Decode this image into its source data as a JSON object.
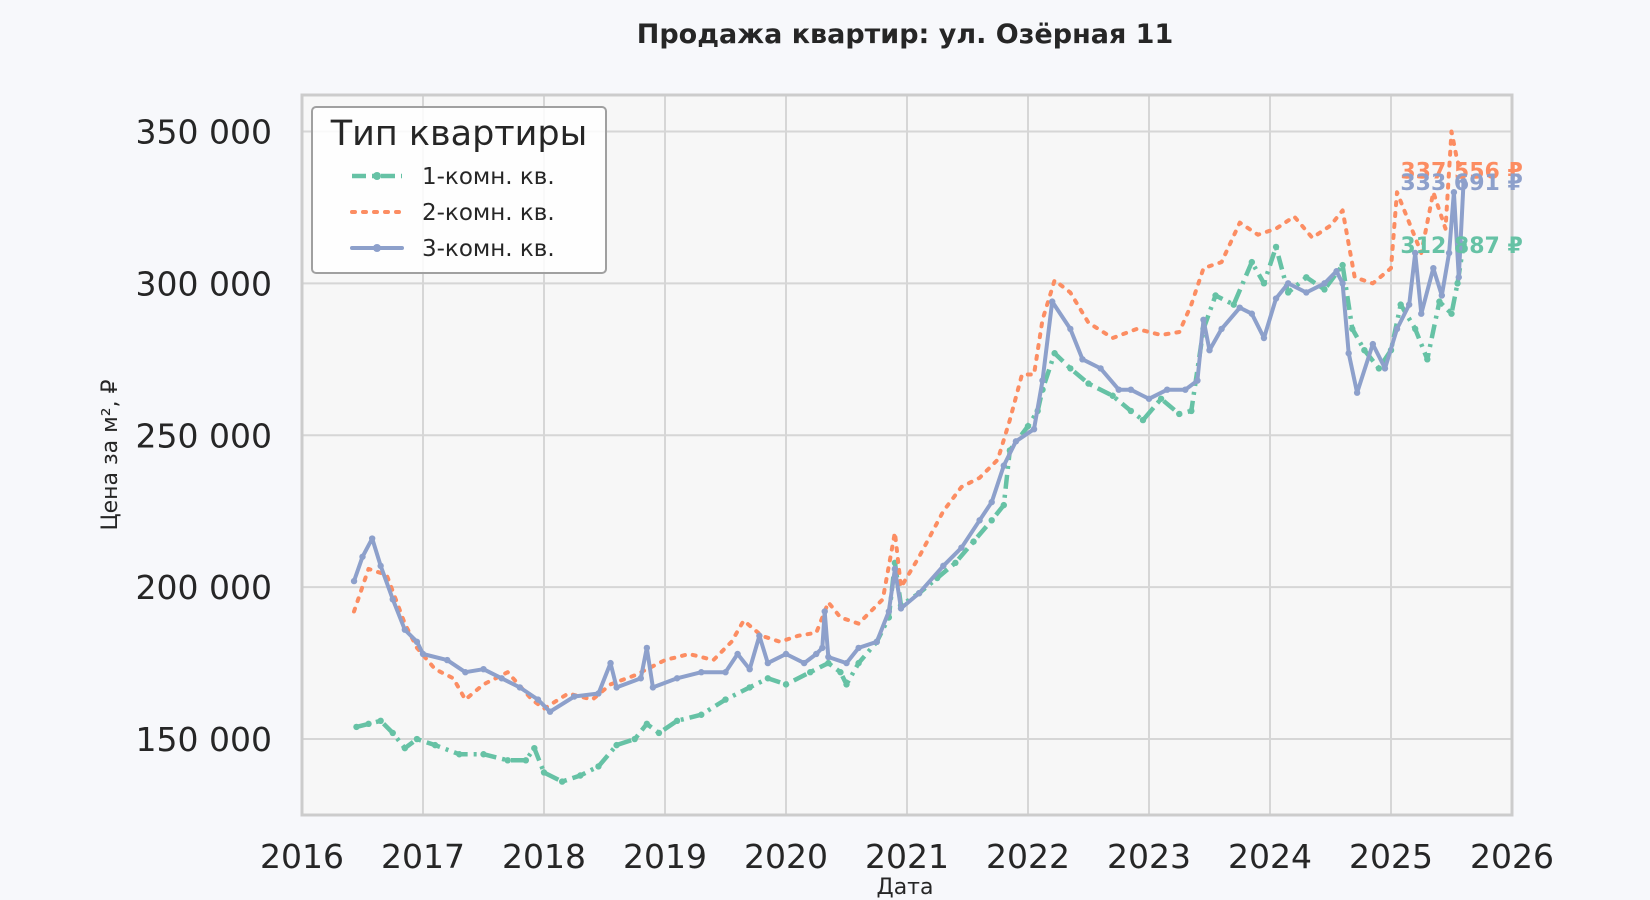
{
  "chart_data": {
    "type": "line",
    "title": "Продажа квартир: ул. Озёрная 11",
    "xlabel": "Дата",
    "ylabel": "Цена за м², ₽",
    "xlim": [
      2016,
      2026
    ],
    "ylim": [
      125000,
      362000
    ],
    "x_ticks": [
      "2016",
      "2017",
      "2018",
      "2019",
      "2020",
      "2021",
      "2022",
      "2023",
      "2024",
      "2025",
      "2026"
    ],
    "y_ticks": [
      {
        "value": 150000,
        "label": "150 000"
      },
      {
        "value": 200000,
        "label": "200 000"
      },
      {
        "value": 250000,
        "label": "250 000"
      },
      {
        "value": 300000,
        "label": "300 000"
      },
      {
        "value": 350000,
        "label": "350 000"
      }
    ],
    "grid": true,
    "legend": {
      "title": "Тип квартиры",
      "position": "top-left"
    },
    "series": [
      {
        "name": "1-комн. кв.",
        "color": "#66c2a5",
        "style": "dashed-dot-markers",
        "end_label": "312 887 ₽",
        "points": [
          [
            2016.45,
            154000
          ],
          [
            2016.55,
            155000
          ],
          [
            2016.65,
            156000
          ],
          [
            2016.75,
            152000
          ],
          [
            2016.85,
            147000
          ],
          [
            2016.95,
            150000
          ],
          [
            2017.1,
            148000
          ],
          [
            2017.3,
            145000
          ],
          [
            2017.5,
            145000
          ],
          [
            2017.7,
            143000
          ],
          [
            2017.85,
            143000
          ],
          [
            2017.92,
            147000
          ],
          [
            2018.0,
            139000
          ],
          [
            2018.15,
            136000
          ],
          [
            2018.3,
            138000
          ],
          [
            2018.45,
            141000
          ],
          [
            2018.6,
            148000
          ],
          [
            2018.75,
            150000
          ],
          [
            2018.85,
            155000
          ],
          [
            2018.95,
            152000
          ],
          [
            2019.1,
            156000
          ],
          [
            2019.3,
            158000
          ],
          [
            2019.5,
            163000
          ],
          [
            2019.7,
            167000
          ],
          [
            2019.85,
            170000
          ],
          [
            2020.0,
            168000
          ],
          [
            2020.2,
            172000
          ],
          [
            2020.35,
            175000
          ],
          [
            2020.45,
            172000
          ],
          [
            2020.5,
            168000
          ],
          [
            2020.6,
            175000
          ],
          [
            2020.75,
            182000
          ],
          [
            2020.85,
            190000
          ],
          [
            2020.9,
            208000
          ],
          [
            2020.95,
            194000
          ],
          [
            2021.1,
            198000
          ],
          [
            2021.25,
            203000
          ],
          [
            2021.4,
            208000
          ],
          [
            2021.55,
            215000
          ],
          [
            2021.7,
            222000
          ],
          [
            2021.8,
            227000
          ],
          [
            2021.85,
            245000
          ],
          [
            2022.0,
            253000
          ],
          [
            2022.08,
            258000
          ],
          [
            2022.12,
            265000
          ],
          [
            2022.22,
            277000
          ],
          [
            2022.35,
            272000
          ],
          [
            2022.5,
            267000
          ],
          [
            2022.7,
            263000
          ],
          [
            2022.85,
            258000
          ],
          [
            2022.95,
            255000
          ],
          [
            2023.1,
            262000
          ],
          [
            2023.25,
            257000
          ],
          [
            2023.35,
            258000
          ],
          [
            2023.45,
            285000
          ],
          [
            2023.55,
            296000
          ],
          [
            2023.7,
            293000
          ],
          [
            2023.85,
            307000
          ],
          [
            2023.95,
            300000
          ],
          [
            2024.05,
            312000
          ],
          [
            2024.15,
            297000
          ],
          [
            2024.3,
            302000
          ],
          [
            2024.45,
            298000
          ],
          [
            2024.6,
            306000
          ],
          [
            2024.68,
            285000
          ],
          [
            2024.78,
            278000
          ],
          [
            2024.9,
            272000
          ],
          [
            2025.0,
            278000
          ],
          [
            2025.08,
            293000
          ],
          [
            2025.2,
            285000
          ],
          [
            2025.3,
            275000
          ],
          [
            2025.4,
            294000
          ],
          [
            2025.5,
            290000
          ],
          [
            2025.55,
            300000
          ],
          [
            2025.6,
            312887
          ]
        ]
      },
      {
        "name": "2-комн. кв.",
        "color": "#fc8d62",
        "style": "dotted",
        "end_label": "337 556 ₽",
        "points": [
          [
            2016.43,
            192000
          ],
          [
            2016.55,
            206000
          ],
          [
            2016.7,
            204000
          ],
          [
            2016.85,
            188000
          ],
          [
            2016.95,
            180000
          ],
          [
            2017.1,
            173000
          ],
          [
            2017.25,
            170000
          ],
          [
            2017.35,
            163000
          ],
          [
            2017.5,
            168000
          ],
          [
            2017.7,
            172000
          ],
          [
            2017.9,
            163000
          ],
          [
            2018.0,
            160000
          ],
          [
            2018.2,
            165000
          ],
          [
            2018.4,
            163000
          ],
          [
            2018.55,
            168000
          ],
          [
            2018.75,
            171000
          ],
          [
            2019.0,
            176000
          ],
          [
            2019.2,
            178000
          ],
          [
            2019.4,
            176000
          ],
          [
            2019.55,
            182000
          ],
          [
            2019.65,
            189000
          ],
          [
            2019.8,
            184000
          ],
          [
            2019.95,
            182000
          ],
          [
            2020.1,
            184000
          ],
          [
            2020.25,
            185000
          ],
          [
            2020.35,
            195000
          ],
          [
            2020.45,
            190000
          ],
          [
            2020.6,
            188000
          ],
          [
            2020.8,
            196000
          ],
          [
            2020.9,
            218000
          ],
          [
            2020.95,
            200000
          ],
          [
            2021.1,
            210000
          ],
          [
            2021.3,
            225000
          ],
          [
            2021.45,
            233000
          ],
          [
            2021.6,
            236000
          ],
          [
            2021.75,
            242000
          ],
          [
            2021.85,
            255000
          ],
          [
            2021.95,
            270000
          ],
          [
            2022.05,
            270000
          ],
          [
            2022.12,
            288000
          ],
          [
            2022.22,
            301000
          ],
          [
            2022.35,
            297000
          ],
          [
            2022.5,
            287000
          ],
          [
            2022.7,
            282000
          ],
          [
            2022.9,
            285000
          ],
          [
            2023.1,
            283000
          ],
          [
            2023.25,
            284000
          ],
          [
            2023.35,
            293000
          ],
          [
            2023.45,
            305000
          ],
          [
            2023.6,
            307000
          ],
          [
            2023.75,
            320000
          ],
          [
            2023.9,
            316000
          ],
          [
            2024.05,
            318000
          ],
          [
            2024.2,
            322000
          ],
          [
            2024.35,
            315000
          ],
          [
            2024.5,
            319000
          ],
          [
            2024.6,
            324000
          ],
          [
            2024.7,
            302000
          ],
          [
            2024.85,
            300000
          ],
          [
            2025.0,
            305000
          ],
          [
            2025.05,
            330000
          ],
          [
            2025.15,
            320000
          ],
          [
            2025.25,
            310000
          ],
          [
            2025.35,
            330000
          ],
          [
            2025.45,
            318000
          ],
          [
            2025.5,
            350000
          ],
          [
            2025.55,
            340000
          ],
          [
            2025.6,
            337556
          ]
        ]
      },
      {
        "name": "3-комн. кв.",
        "color": "#8da0cb",
        "style": "solid-markers",
        "end_label": "333 691 ₽",
        "points": [
          [
            2016.43,
            202000
          ],
          [
            2016.5,
            210000
          ],
          [
            2016.58,
            216000
          ],
          [
            2016.65,
            207000
          ],
          [
            2016.75,
            196000
          ],
          [
            2016.85,
            186000
          ],
          [
            2016.95,
            182000
          ],
          [
            2017.0,
            178000
          ],
          [
            2017.2,
            176000
          ],
          [
            2017.35,
            172000
          ],
          [
            2017.5,
            173000
          ],
          [
            2017.65,
            170000
          ],
          [
            2017.8,
            167000
          ],
          [
            2017.95,
            163000
          ],
          [
            2018.05,
            159000
          ],
          [
            2018.25,
            164000
          ],
          [
            2018.45,
            165000
          ],
          [
            2018.55,
            175000
          ],
          [
            2018.6,
            167000
          ],
          [
            2018.8,
            170000
          ],
          [
            2018.85,
            180000
          ],
          [
            2018.9,
            167000
          ],
          [
            2019.1,
            170000
          ],
          [
            2019.3,
            172000
          ],
          [
            2019.5,
            172000
          ],
          [
            2019.6,
            178000
          ],
          [
            2019.7,
            173000
          ],
          [
            2019.78,
            184000
          ],
          [
            2019.85,
            175000
          ],
          [
            2020.0,
            178000
          ],
          [
            2020.15,
            175000
          ],
          [
            2020.25,
            178000
          ],
          [
            2020.3,
            180000
          ],
          [
            2020.32,
            192000
          ],
          [
            2020.35,
            177000
          ],
          [
            2020.5,
            175000
          ],
          [
            2020.6,
            180000
          ],
          [
            2020.75,
            182000
          ],
          [
            2020.85,
            192000
          ],
          [
            2020.9,
            206000
          ],
          [
            2020.95,
            193000
          ],
          [
            2021.1,
            198000
          ],
          [
            2021.3,
            207000
          ],
          [
            2021.45,
            213000
          ],
          [
            2021.6,
            222000
          ],
          [
            2021.7,
            228000
          ],
          [
            2021.8,
            240000
          ],
          [
            2021.9,
            248000
          ],
          [
            2022.05,
            252000
          ],
          [
            2022.12,
            268000
          ],
          [
            2022.2,
            294000
          ],
          [
            2022.35,
            285000
          ],
          [
            2022.45,
            275000
          ],
          [
            2022.6,
            272000
          ],
          [
            2022.75,
            265000
          ],
          [
            2022.85,
            265000
          ],
          [
            2023.0,
            262000
          ],
          [
            2023.15,
            265000
          ],
          [
            2023.3,
            265000
          ],
          [
            2023.4,
            268000
          ],
          [
            2023.45,
            288000
          ],
          [
            2023.5,
            278000
          ],
          [
            2023.6,
            285000
          ],
          [
            2023.75,
            292000
          ],
          [
            2023.85,
            290000
          ],
          [
            2023.95,
            282000
          ],
          [
            2024.05,
            295000
          ],
          [
            2024.15,
            300000
          ],
          [
            2024.3,
            297000
          ],
          [
            2024.45,
            300000
          ],
          [
            2024.55,
            304000
          ],
          [
            2024.6,
            300000
          ],
          [
            2024.65,
            277000
          ],
          [
            2024.72,
            264000
          ],
          [
            2024.85,
            280000
          ],
          [
            2024.95,
            272000
          ],
          [
            2025.05,
            285000
          ],
          [
            2025.15,
            293000
          ],
          [
            2025.2,
            310000
          ],
          [
            2025.25,
            290000
          ],
          [
            2025.35,
            305000
          ],
          [
            2025.42,
            296000
          ],
          [
            2025.48,
            310000
          ],
          [
            2025.52,
            330000
          ],
          [
            2025.56,
            302000
          ],
          [
            2025.6,
            333691
          ]
        ]
      }
    ]
  }
}
